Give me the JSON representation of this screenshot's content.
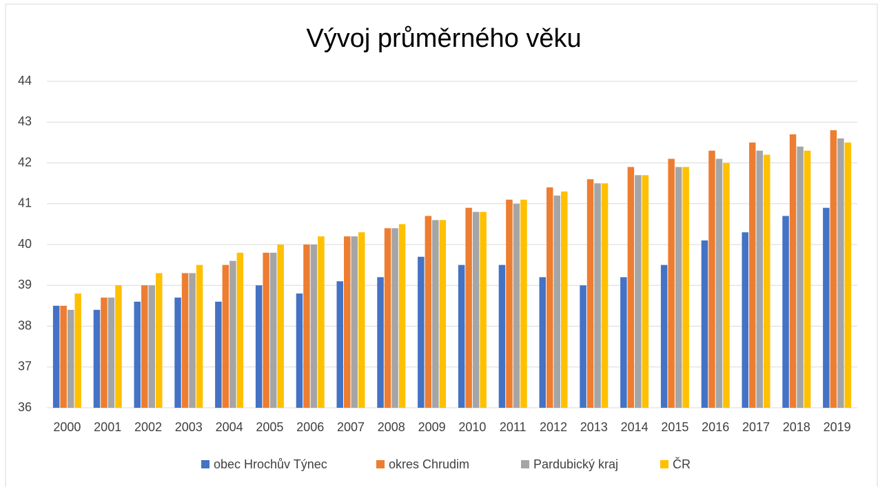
{
  "chart_data": {
    "type": "bar",
    "title": "Vývoj průměrného věku",
    "categories": [
      "2000",
      "2001",
      "2002",
      "2003",
      "2004",
      "2005",
      "2006",
      "2007",
      "2008",
      "2009",
      "2010",
      "2011",
      "2012",
      "2013",
      "2014",
      "2015",
      "2016",
      "2017",
      "2018",
      "2019"
    ],
    "series": [
      {
        "name": "obec Hrochův Týnec",
        "color": "#4472c4",
        "values": [
          38.5,
          38.4,
          38.6,
          38.7,
          38.6,
          39.0,
          38.8,
          39.1,
          39.2,
          39.7,
          39.5,
          39.5,
          39.2,
          39.0,
          39.2,
          39.5,
          40.1,
          40.3,
          40.7,
          40.9
        ]
      },
      {
        "name": "okres Chrudim",
        "color": "#ed7d31",
        "values": [
          38.5,
          38.7,
          39.0,
          39.3,
          39.5,
          39.8,
          40.0,
          40.2,
          40.4,
          40.7,
          40.9,
          41.1,
          41.4,
          41.6,
          41.9,
          42.1,
          42.3,
          42.5,
          42.7,
          42.8
        ]
      },
      {
        "name": "Pardubický kraj",
        "color": "#a5a5a5",
        "values": [
          38.4,
          38.7,
          39.0,
          39.3,
          39.6,
          39.8,
          40.0,
          40.2,
          40.4,
          40.6,
          40.8,
          41.0,
          41.2,
          41.5,
          41.7,
          41.9,
          42.1,
          42.3,
          42.4,
          42.6
        ]
      },
      {
        "name": "ČR",
        "color": "#ffc000",
        "values": [
          38.8,
          39.0,
          39.3,
          39.5,
          39.8,
          40.0,
          40.2,
          40.3,
          40.5,
          40.6,
          40.8,
          41.1,
          41.3,
          41.5,
          41.7,
          41.9,
          42.0,
          42.2,
          42.3,
          42.5
        ]
      }
    ],
    "ylim": [
      36,
      44
    ],
    "yticks": [
      36,
      37,
      38,
      39,
      40,
      41,
      42,
      43,
      44
    ],
    "grid": true,
    "legend": "bottom"
  }
}
